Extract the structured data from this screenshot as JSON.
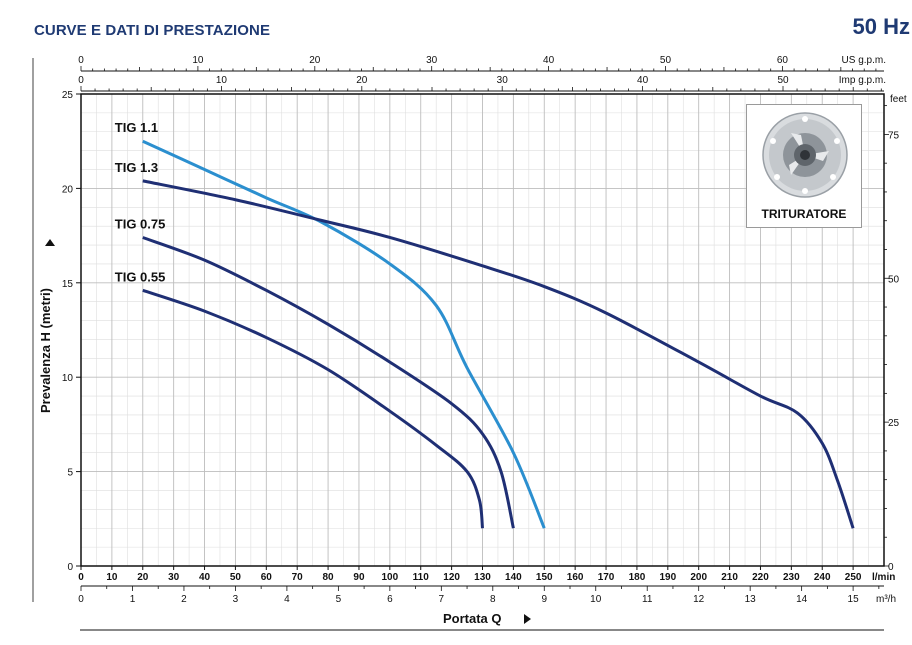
{
  "header": {
    "title": "CURVE E DATI DI PRESTAZIONE",
    "frequency": "50 Hz"
  },
  "inset": {
    "label": "TRITURATORE",
    "icon": "macerator-impeller-icon"
  },
  "colors": {
    "dark_series": "#1f2f74",
    "light_series": "#2b8fcf",
    "grid": "#bdbdbd",
    "title": "#1f3a73"
  },
  "chart_data": {
    "type": "line",
    "title": "",
    "xlabel": "Portata Q",
    "ylabel": "Prevalenza H (metri)",
    "x_unit": "l/min",
    "xlim": [
      0,
      260
    ],
    "ylim": [
      0,
      25
    ],
    "grid": true,
    "x_ticks": [
      0,
      10,
      20,
      30,
      40,
      50,
      60,
      70,
      80,
      90,
      100,
      110,
      120,
      130,
      140,
      150,
      160,
      170,
      180,
      190,
      200,
      210,
      220,
      230,
      240,
      250
    ],
    "y_ticks": [
      0,
      5,
      10,
      15,
      20,
      25
    ],
    "secondary_axes": {
      "us_gpm": {
        "unit": "US g.p.m.",
        "ticks": [
          0,
          10,
          20,
          30,
          40,
          50,
          60
        ]
      },
      "imp_gpm": {
        "unit": "Imp g.p.m.",
        "ticks": [
          0,
          10,
          20,
          30,
          40,
          50
        ]
      },
      "m3h": {
        "unit": "m³/h",
        "ticks": [
          0,
          1,
          2,
          3,
          4,
          5,
          6,
          7,
          8,
          9,
          10,
          11,
          12,
          13,
          14,
          15
        ]
      },
      "feet": {
        "unit": "feet",
        "ticks": [
          0,
          25,
          50,
          75
        ]
      }
    },
    "series": [
      {
        "name": "TIG 1.1",
        "color": "#2b8fcf",
        "x": [
          20,
          40,
          60,
          78,
          100,
          115,
          125,
          140,
          150
        ],
        "y": [
          22.5,
          21.0,
          19.5,
          18.2,
          16.0,
          13.8,
          10.5,
          6.0,
          2.0
        ]
      },
      {
        "name": "TIG 1.3",
        "color": "#1f2f74",
        "x": [
          20,
          50,
          78,
          100,
          130,
          150,
          170,
          200,
          220,
          232,
          240,
          245,
          250
        ],
        "y": [
          20.4,
          19.4,
          18.3,
          17.4,
          15.9,
          14.8,
          13.4,
          10.8,
          9.0,
          8.1,
          6.5,
          4.5,
          2.0
        ]
      },
      {
        "name": "TIG 0.75",
        "color": "#1f2f74",
        "x": [
          20,
          40,
          60,
          80,
          100,
          120,
          130,
          136,
          140
        ],
        "y": [
          17.4,
          16.2,
          14.6,
          12.8,
          10.8,
          8.6,
          7.0,
          5.0,
          2.0
        ]
      },
      {
        "name": "TIG 0.55",
        "color": "#1f2f74",
        "x": [
          20,
          40,
          60,
          80,
          100,
          115,
          125,
          129,
          130
        ],
        "y": [
          14.6,
          13.5,
          12.1,
          10.4,
          8.2,
          6.4,
          5.0,
          3.5,
          2.0
        ]
      }
    ]
  }
}
